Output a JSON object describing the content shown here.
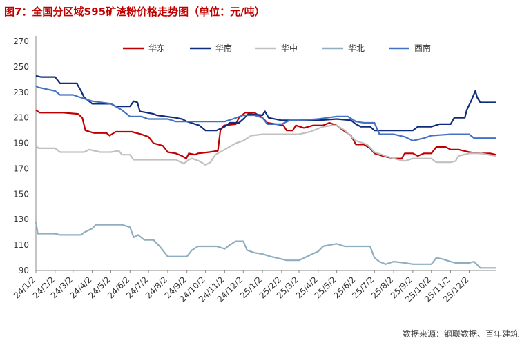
{
  "title": "图7：全国分区域S95矿渣粉价格走势图（单位：元/吨）",
  "source": "数据来源：钢联数据、百年建筑",
  "colors": {
    "title": "#c00000"
  },
  "chart_data": {
    "type": "line",
    "ylim": [
      90,
      270
    ],
    "yticks": [
      90,
      110,
      130,
      150,
      170,
      190,
      210,
      230,
      250,
      270
    ],
    "x_dates": [
      "2024-01-02",
      "2024-02-02",
      "2024-03-02",
      "2024-04-02",
      "2024-05-02",
      "2024-06-02",
      "2024-07-02",
      "2024-08-02",
      "2024-09-02",
      "2024-10-02",
      "2024-11-02",
      "2024-12-02",
      "2025-01-02",
      "2025-02-02",
      "2025-03-02",
      "2025-04-02",
      "2025-05-02",
      "2025-06-02",
      "2025-07-02",
      "2025-08-02",
      "2025-09-02",
      "2025-10-02",
      "2025-11-02",
      "2025-12-02"
    ],
    "x_labels": [
      "24/1/2",
      "24/2/2",
      "24/3/2",
      "24/4/2",
      "24/5/2",
      "24/6/2",
      "24/7/2",
      "24/8/2",
      "24/9/2",
      "24/10/2",
      "24/11/2",
      "24/12/2",
      "25/1/2",
      "25/2/2",
      "25/3/2",
      "25/4/2",
      "25/5/2",
      "25/6/2",
      "25/7/2",
      "25/8/2",
      "25/9/2",
      "25/10/2",
      "25/11/2",
      "25/12/2"
    ],
    "x_end": "2026-01-14",
    "legend_position": "top",
    "series": [
      {
        "name": "华东",
        "color": "#c00000",
        "points": [
          [
            "2024-01-02",
            216
          ],
          [
            "2024-01-08",
            214
          ],
          [
            "2024-02-15",
            214
          ],
          [
            "2024-03-10",
            213
          ],
          [
            "2024-03-17",
            210
          ],
          [
            "2024-03-22",
            200
          ],
          [
            "2024-04-05",
            198
          ],
          [
            "2024-04-25",
            198
          ],
          [
            "2024-04-30",
            196
          ],
          [
            "2024-05-10",
            199
          ],
          [
            "2024-06-05",
            199
          ],
          [
            "2024-06-20",
            197
          ],
          [
            "2024-07-02",
            195
          ],
          [
            "2024-07-10",
            190
          ],
          [
            "2024-07-25",
            188
          ],
          [
            "2024-08-02",
            183
          ],
          [
            "2024-08-15",
            182
          ],
          [
            "2024-08-25",
            180
          ],
          [
            "2024-09-01",
            178
          ],
          [
            "2024-09-05",
            182
          ],
          [
            "2024-09-15",
            181
          ],
          [
            "2024-09-20",
            182
          ],
          [
            "2024-10-08",
            183
          ],
          [
            "2024-10-22",
            184
          ],
          [
            "2024-10-26",
            200
          ],
          [
            "2024-11-01",
            204
          ],
          [
            "2024-11-20",
            205
          ],
          [
            "2024-11-25",
            210
          ],
          [
            "2024-12-05",
            214
          ],
          [
            "2024-12-20",
            214
          ],
          [
            "2025-01-02",
            210
          ],
          [
            "2025-01-10",
            206
          ],
          [
            "2025-02-05",
            204
          ],
          [
            "2025-02-10",
            200
          ],
          [
            "2025-02-20",
            200
          ],
          [
            "2025-02-25",
            204
          ],
          [
            "2025-03-10",
            202
          ],
          [
            "2025-03-25",
            204
          ],
          [
            "2025-04-10",
            204
          ],
          [
            "2025-04-20",
            206
          ],
          [
            "2025-05-02",
            204
          ],
          [
            "2025-05-10",
            201
          ],
          [
            "2025-05-25",
            196
          ],
          [
            "2025-06-02",
            189
          ],
          [
            "2025-06-15",
            189
          ],
          [
            "2025-06-25",
            186
          ],
          [
            "2025-07-02",
            182
          ],
          [
            "2025-07-15",
            180
          ],
          [
            "2025-08-02",
            178
          ],
          [
            "2025-08-15",
            178
          ],
          [
            "2025-08-20",
            182
          ],
          [
            "2025-09-02",
            182
          ],
          [
            "2025-09-10",
            180
          ],
          [
            "2025-09-20",
            182
          ],
          [
            "2025-10-02",
            182
          ],
          [
            "2025-10-10",
            187
          ],
          [
            "2025-10-25",
            187
          ],
          [
            "2025-11-02",
            185
          ],
          [
            "2025-11-15",
            185
          ],
          [
            "2025-12-02",
            183
          ],
          [
            "2025-12-20",
            182
          ],
          [
            "2026-01-05",
            182
          ],
          [
            "2026-01-14",
            181
          ]
        ]
      },
      {
        "name": "华南",
        "color": "#0f2d7a",
        "points": [
          [
            "2024-01-02",
            243
          ],
          [
            "2024-01-10",
            242
          ],
          [
            "2024-02-02",
            242
          ],
          [
            "2024-02-10",
            237
          ],
          [
            "2024-03-08",
            237
          ],
          [
            "2024-03-15",
            231
          ],
          [
            "2024-03-20",
            226
          ],
          [
            "2024-04-02",
            221
          ],
          [
            "2024-05-02",
            221
          ],
          [
            "2024-05-10",
            219
          ],
          [
            "2024-06-02",
            219
          ],
          [
            "2024-06-08",
            223
          ],
          [
            "2024-06-14",
            222
          ],
          [
            "2024-06-18",
            215
          ],
          [
            "2024-07-10",
            213
          ],
          [
            "2024-07-15",
            212
          ],
          [
            "2024-08-15",
            210
          ],
          [
            "2024-08-25",
            209
          ],
          [
            "2024-09-02",
            207
          ],
          [
            "2024-09-22",
            204
          ],
          [
            "2024-10-02",
            200
          ],
          [
            "2024-10-20",
            200
          ],
          [
            "2024-11-02",
            203
          ],
          [
            "2024-11-10",
            206
          ],
          [
            "2024-11-25",
            206
          ],
          [
            "2024-12-02",
            209
          ],
          [
            "2024-12-10",
            213
          ],
          [
            "2025-01-02",
            212
          ],
          [
            "2025-01-06",
            215
          ],
          [
            "2025-01-12",
            210
          ],
          [
            "2025-02-02",
            208
          ],
          [
            "2025-03-02",
            208
          ],
          [
            "2025-04-02",
            208
          ],
          [
            "2025-05-02",
            209
          ],
          [
            "2025-05-25",
            208
          ],
          [
            "2025-06-02",
            205
          ],
          [
            "2025-06-10",
            203
          ],
          [
            "2025-06-25",
            203
          ],
          [
            "2025-07-02",
            200
          ],
          [
            "2025-09-02",
            200
          ],
          [
            "2025-09-10",
            203
          ],
          [
            "2025-10-02",
            203
          ],
          [
            "2025-10-15",
            205
          ],
          [
            "2025-11-02",
            205
          ],
          [
            "2025-11-08",
            210
          ],
          [
            "2025-11-25",
            210
          ],
          [
            "2025-11-28",
            216
          ],
          [
            "2025-12-05",
            223
          ],
          [
            "2025-12-12",
            231
          ],
          [
            "2025-12-15",
            226
          ],
          [
            "2025-12-20",
            222
          ],
          [
            "2026-01-14",
            222
          ]
        ]
      },
      {
        "name": "华中",
        "color": "#c0c0c0",
        "points": [
          [
            "2024-01-02",
            188
          ],
          [
            "2024-01-06",
            186
          ],
          [
            "2024-02-02",
            186
          ],
          [
            "2024-02-10",
            183
          ],
          [
            "2024-03-20",
            183
          ],
          [
            "2024-03-28",
            185
          ],
          [
            "2024-04-15",
            183
          ],
          [
            "2024-05-02",
            183
          ],
          [
            "2024-05-15",
            184
          ],
          [
            "2024-05-20",
            181
          ],
          [
            "2024-06-02",
            181
          ],
          [
            "2024-06-08",
            177
          ],
          [
            "2024-06-25",
            177
          ],
          [
            "2024-07-02",
            177
          ],
          [
            "2024-08-15",
            177
          ],
          [
            "2024-08-28",
            174
          ],
          [
            "2024-09-05",
            177
          ],
          [
            "2024-09-10",
            178
          ],
          [
            "2024-09-22",
            176
          ],
          [
            "2024-10-02",
            173
          ],
          [
            "2024-10-10",
            175
          ],
          [
            "2024-10-18",
            181
          ],
          [
            "2024-11-02",
            185
          ],
          [
            "2024-11-20",
            190
          ],
          [
            "2024-12-02",
            192
          ],
          [
            "2024-12-15",
            196
          ],
          [
            "2025-01-02",
            197
          ],
          [
            "2025-02-02",
            197
          ],
          [
            "2025-03-02",
            197
          ],
          [
            "2025-03-20",
            199
          ],
          [
            "2025-04-10",
            203
          ],
          [
            "2025-04-25",
            204
          ],
          [
            "2025-05-02",
            204
          ],
          [
            "2025-05-15",
            200
          ],
          [
            "2025-06-02",
            192
          ],
          [
            "2025-06-20",
            189
          ],
          [
            "2025-07-02",
            183
          ],
          [
            "2025-07-20",
            180
          ],
          [
            "2025-08-02",
            178
          ],
          [
            "2025-08-20",
            176
          ],
          [
            "2025-09-02",
            178
          ],
          [
            "2025-10-02",
            178
          ],
          [
            "2025-10-10",
            175
          ],
          [
            "2025-11-02",
            175
          ],
          [
            "2025-11-10",
            176
          ],
          [
            "2025-11-15",
            180
          ],
          [
            "2025-12-02",
            182
          ],
          [
            "2025-12-20",
            182
          ],
          [
            "2026-01-14",
            180
          ]
        ]
      },
      {
        "name": "华北",
        "color": "#8faebf",
        "points": [
          [
            "2024-01-02",
            128
          ],
          [
            "2024-01-05",
            119
          ],
          [
            "2024-02-02",
            119
          ],
          [
            "2024-02-10",
            118
          ],
          [
            "2024-03-15",
            118
          ],
          [
            "2024-03-20",
            120
          ],
          [
            "2024-04-02",
            123
          ],
          [
            "2024-04-08",
            126
          ],
          [
            "2024-05-02",
            126
          ],
          [
            "2024-05-20",
            126
          ],
          [
            "2024-06-02",
            124
          ],
          [
            "2024-06-08",
            116
          ],
          [
            "2024-06-15",
            118
          ],
          [
            "2024-06-25",
            114
          ],
          [
            "2024-07-10",
            114
          ],
          [
            "2024-07-20",
            109
          ],
          [
            "2024-08-02",
            101
          ],
          [
            "2024-09-02",
            101
          ],
          [
            "2024-09-10",
            106
          ],
          [
            "2024-09-20",
            109
          ],
          [
            "2024-10-02",
            109
          ],
          [
            "2024-10-20",
            109
          ],
          [
            "2024-11-02",
            107
          ],
          [
            "2024-11-10",
            110
          ],
          [
            "2024-11-20",
            113
          ],
          [
            "2024-12-02",
            113
          ],
          [
            "2024-12-08",
            106
          ],
          [
            "2024-12-20",
            104
          ],
          [
            "2025-01-02",
            103
          ],
          [
            "2025-01-15",
            101
          ],
          [
            "2025-02-02",
            99
          ],
          [
            "2025-02-10",
            98
          ],
          [
            "2025-03-02",
            98
          ],
          [
            "2025-03-15",
            101
          ],
          [
            "2025-04-02",
            105
          ],
          [
            "2025-04-10",
            109
          ],
          [
            "2025-04-20",
            110
          ],
          [
            "2025-05-02",
            111
          ],
          [
            "2025-05-15",
            109
          ],
          [
            "2025-06-02",
            109
          ],
          [
            "2025-06-25",
            109
          ],
          [
            "2025-07-02",
            100
          ],
          [
            "2025-07-10",
            97
          ],
          [
            "2025-07-20",
            95
          ],
          [
            "2025-08-02",
            97
          ],
          [
            "2025-08-20",
            96
          ],
          [
            "2025-09-02",
            95
          ],
          [
            "2025-10-02",
            95
          ],
          [
            "2025-10-10",
            100
          ],
          [
            "2025-10-20",
            99
          ],
          [
            "2025-11-02",
            97
          ],
          [
            "2025-11-10",
            96
          ],
          [
            "2025-12-02",
            96
          ],
          [
            "2025-12-10",
            97
          ],
          [
            "2025-12-20",
            92
          ],
          [
            "2026-01-14",
            92
          ]
        ]
      },
      {
        "name": "西南",
        "color": "#4472c4",
        "points": [
          [
            "2024-01-02",
            235
          ],
          [
            "2024-01-05",
            234
          ],
          [
            "2024-02-02",
            231
          ],
          [
            "2024-02-10",
            228
          ],
          [
            "2024-03-02",
            228
          ],
          [
            "2024-03-20",
            225
          ],
          [
            "2024-04-02",
            223
          ],
          [
            "2024-05-02",
            221
          ],
          [
            "2024-05-20",
            216
          ],
          [
            "2024-06-02",
            211
          ],
          [
            "2024-06-20",
            211
          ],
          [
            "2024-07-02",
            209
          ],
          [
            "2024-08-02",
            209
          ],
          [
            "2024-08-15",
            207
          ],
          [
            "2024-09-02",
            207
          ],
          [
            "2024-10-02",
            207
          ],
          [
            "2024-11-02",
            207
          ],
          [
            "2024-11-15",
            209
          ],
          [
            "2024-12-02",
            212
          ],
          [
            "2024-12-20",
            212
          ],
          [
            "2025-01-02",
            210
          ],
          [
            "2025-01-10",
            205
          ],
          [
            "2025-02-02",
            205
          ],
          [
            "2025-02-15",
            208
          ],
          [
            "2025-03-02",
            208
          ],
          [
            "2025-04-02",
            209
          ],
          [
            "2025-05-02",
            211
          ],
          [
            "2025-05-20",
            211
          ],
          [
            "2025-06-02",
            207
          ],
          [
            "2025-06-15",
            206
          ],
          [
            "2025-07-02",
            206
          ],
          [
            "2025-07-10",
            197
          ],
          [
            "2025-08-02",
            197
          ],
          [
            "2025-08-20",
            195
          ],
          [
            "2025-09-02",
            192
          ],
          [
            "2025-09-20",
            194
          ],
          [
            "2025-10-02",
            196
          ],
          [
            "2025-11-02",
            197
          ],
          [
            "2025-12-02",
            197
          ],
          [
            "2025-12-10",
            194
          ],
          [
            "2026-01-14",
            194
          ]
        ]
      }
    ]
  }
}
